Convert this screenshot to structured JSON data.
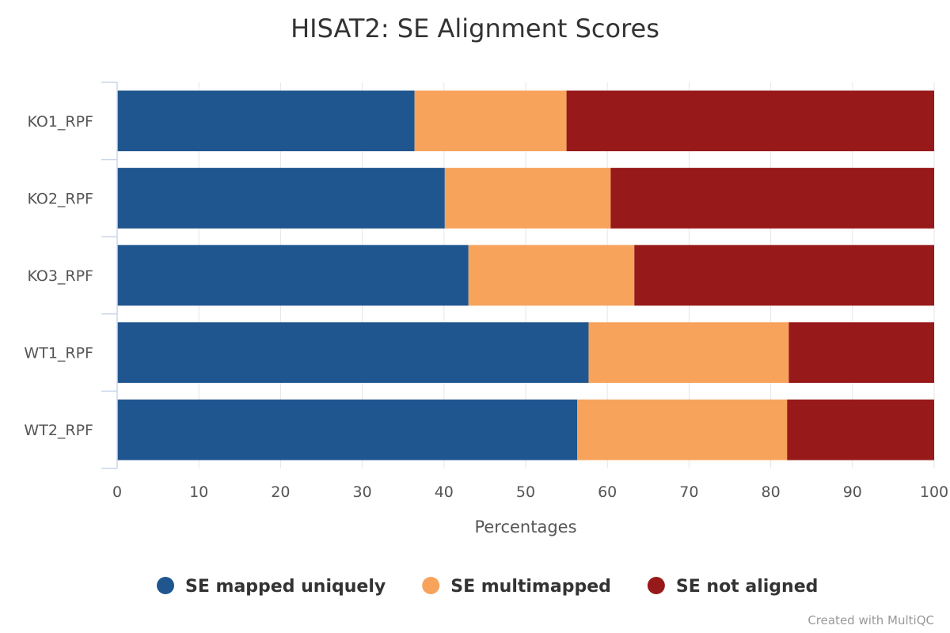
{
  "chart_data": {
    "type": "bar",
    "orientation": "horizontal",
    "stacked": true,
    "title": "HISAT2: SE Alignment Scores",
    "categories": [
      "KO1_RPF",
      "KO2_RPF",
      "KO3_RPF",
      "WT1_RPF",
      "WT2_RPF"
    ],
    "series": [
      {
        "name": "SE mapped uniquely",
        "color": "#20568f",
        "values": [
          36.4,
          40.1,
          43.0,
          57.7,
          56.3
        ]
      },
      {
        "name": "SE multimapped",
        "color": "#f7a35c",
        "values": [
          18.6,
          20.3,
          20.3,
          24.5,
          25.7
        ]
      },
      {
        "name": "SE not aligned",
        "color": "#981919",
        "values": [
          45.0,
          39.6,
          36.7,
          17.8,
          18.0
        ]
      }
    ],
    "xlabel": "Percentages",
    "ylabel": "",
    "xlim": [
      0,
      100
    ],
    "xticks": [
      0,
      10,
      20,
      30,
      40,
      50,
      60,
      70,
      80,
      90,
      100
    ],
    "grid": true,
    "legend": "bottom-center"
  },
  "credit": "Created with MultiQC"
}
